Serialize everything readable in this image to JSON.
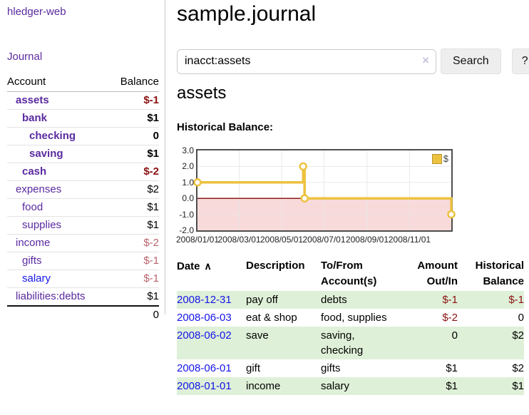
{
  "app": {
    "brand": "hledger-web"
  },
  "nav": {
    "journal": "Journal"
  },
  "icons": {
    "clear_search": "×",
    "sort_ascending": "∧"
  },
  "sidebar": {
    "header": {
      "account": "Account",
      "balance": "Balance"
    },
    "accounts": [
      {
        "name": "assets",
        "balance": "$-1",
        "depth": 0,
        "bold": true,
        "neg": "strong",
        "link": "purple"
      },
      {
        "name": "bank",
        "balance": "$1",
        "depth": 1,
        "bold": true,
        "neg": null,
        "link": "purple"
      },
      {
        "name": "checking",
        "balance": "0",
        "depth": 2,
        "bold": true,
        "neg": null,
        "link": "purple"
      },
      {
        "name": "saving",
        "balance": "$1",
        "depth": 2,
        "bold": true,
        "neg": null,
        "link": "purple"
      },
      {
        "name": "cash",
        "balance": "$-2",
        "depth": 1,
        "bold": true,
        "neg": "strong",
        "link": "purple"
      },
      {
        "name": "expenses",
        "balance": "$2",
        "depth": 0,
        "bold": false,
        "neg": null,
        "link": "purple"
      },
      {
        "name": "food",
        "balance": "$1",
        "depth": 1,
        "bold": false,
        "neg": null,
        "link": "purple"
      },
      {
        "name": "supplies",
        "balance": "$1",
        "depth": 1,
        "bold": false,
        "neg": null,
        "link": "purple"
      },
      {
        "name": "income",
        "balance": "$-2",
        "depth": 0,
        "bold": false,
        "neg": "muted",
        "link": "purple"
      },
      {
        "name": "gifts",
        "balance": "$-1",
        "depth": 1,
        "bold": false,
        "neg": "muted",
        "link": "purple"
      },
      {
        "name": "salary",
        "balance": "$-1",
        "depth": 1,
        "bold": false,
        "neg": "muted",
        "link": "blue"
      },
      {
        "name": "liabilities:debts",
        "balance": "$1",
        "depth": 0,
        "bold": false,
        "neg": null,
        "link": "purple"
      }
    ],
    "total": "0"
  },
  "main": {
    "title": "sample.journal",
    "search": {
      "value": "inacct:assets",
      "button_label": "Search",
      "help_label": "?"
    },
    "account_heading": "assets",
    "chart_label": "Historical Balance:",
    "register": {
      "headers": [
        "Date",
        "Description",
        "To/From\nAccount(s)",
        "Amount\nOut/In",
        "Historical\nBalance"
      ],
      "rows": [
        {
          "date": "2008-12-31",
          "description": "pay off",
          "accounts": "debts",
          "amount": "$-1",
          "amount_negative": true,
          "balance": "$-1",
          "balance_negative": true
        },
        {
          "date": "2008-06-03",
          "description": "eat & shop",
          "accounts": "food, supplies",
          "amount": "$-2",
          "amount_negative": true,
          "balance": "0",
          "balance_negative": false
        },
        {
          "date": "2008-06-02",
          "description": "save",
          "accounts": "saving,\nchecking",
          "amount": "0",
          "amount_negative": false,
          "balance": "$2",
          "balance_negative": false
        },
        {
          "date": "2008-06-01",
          "description": "gift",
          "accounts": "gifts",
          "amount": "$1",
          "amount_negative": false,
          "balance": "$2",
          "balance_negative": false
        },
        {
          "date": "2008-01-01",
          "description": "income",
          "accounts": "salary",
          "amount": "$1",
          "amount_negative": false,
          "balance": "$1",
          "balance_negative": false
        }
      ]
    }
  },
  "chart_data": {
    "type": "line",
    "step": true,
    "title": "Historical Balance",
    "series": [
      {
        "name": "$",
        "color": "#edc240",
        "points": [
          [
            "2008-01-01",
            1.0
          ],
          [
            "2008-06-01",
            2.0
          ],
          [
            "2008-06-03",
            0.0
          ],
          [
            "2008-12-31",
            -1.0
          ]
        ]
      }
    ],
    "x_ticks": [
      "2008/01/01",
      "2008/03/01",
      "2008/05/01",
      "2008/07/01",
      "2008/09/01",
      "2008/11/01"
    ],
    "y_ticks": [
      "3.0",
      "2.0",
      "1.0",
      "0.0",
      "-1.0",
      "-2.0"
    ],
    "ylim": [
      -2,
      3
    ],
    "xlim": [
      "2008-01-01",
      "2008-12-31"
    ],
    "legend": "$",
    "legend_position": "top-right",
    "grid": true,
    "gridline_color": "#e7e7e7",
    "negative_region_color": "#f9dada",
    "zero_line_color": "#8b1a1a"
  }
}
